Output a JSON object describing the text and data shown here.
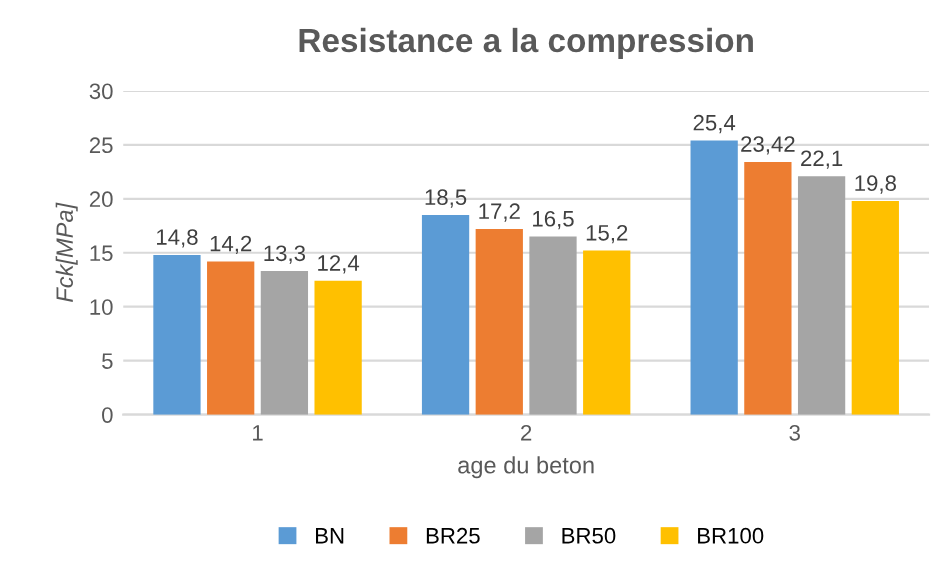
{
  "chart_data": {
    "type": "bar",
    "title": "Resistance a la compression",
    "xlabel": "age du beton",
    "ylabel": "Fck[MPa]",
    "categories": [
      "1",
      "2",
      "3"
    ],
    "series": [
      {
        "name": "BN",
        "color": "#5b9bd5",
        "values": [
          14.8,
          18.5,
          25.4
        ],
        "value_labels": [
          "14,8",
          "18,5",
          "25,4"
        ]
      },
      {
        "name": "BR25",
        "color": "#ed7d31",
        "values": [
          14.2,
          17.2,
          23.42
        ],
        "value_labels": [
          "14,2",
          "17,2",
          "23,42"
        ]
      },
      {
        "name": "BR50",
        "color": "#a5a5a5",
        "values": [
          13.3,
          16.5,
          22.1
        ],
        "value_labels": [
          "13,3",
          "16,5",
          "22,1"
        ]
      },
      {
        "name": "BR100",
        "color": "#ffc000",
        "values": [
          12.4,
          15.2,
          19.8
        ],
        "value_labels": [
          "12,4",
          "15,2",
          "19,8"
        ]
      }
    ],
    "ylim": [
      0,
      30
    ],
    "yticks": [
      0,
      5,
      10,
      15,
      20,
      25,
      30
    ],
    "grid": "y",
    "legend": "bottom"
  }
}
